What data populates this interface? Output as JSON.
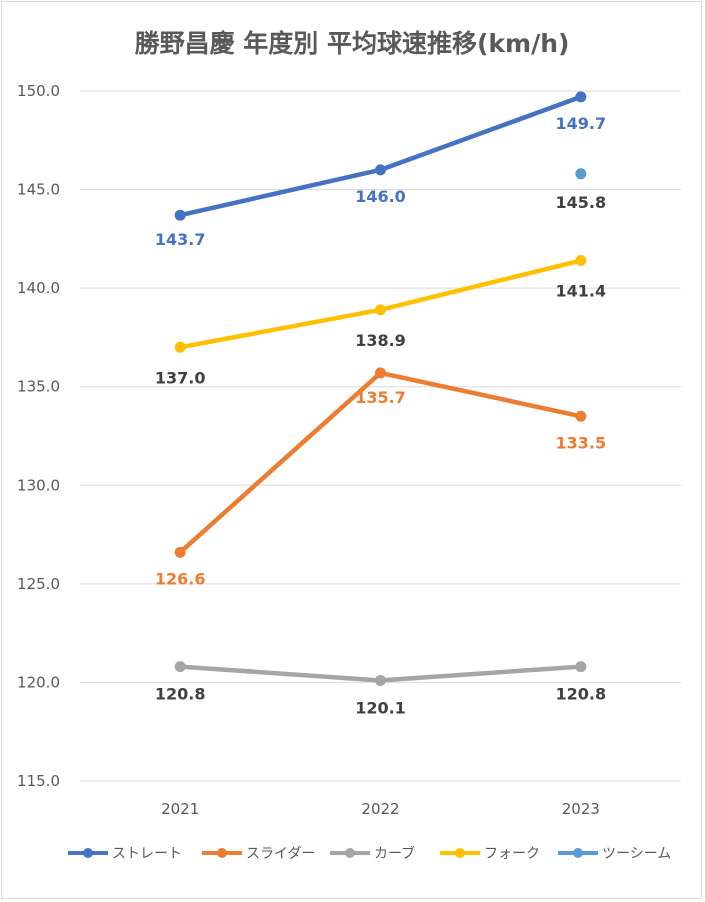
{
  "chart_data": {
    "type": "line",
    "title": "勝野昌慶 年度別 平均球速推移(km/h)",
    "xlabel": "",
    "ylabel": "",
    "categories": [
      "2021",
      "2022",
      "2023"
    ],
    "ylim": [
      115.0,
      150.0
    ],
    "yticks": [
      "115.0",
      "120.0",
      "125.0",
      "130.0",
      "135.0",
      "140.0",
      "145.0",
      "150.0"
    ],
    "grid": true,
    "legend": "bottom",
    "series": [
      {
        "name": "ストレート",
        "color": "#4472c4",
        "values": [
          143.7,
          146.0,
          149.7
        ],
        "labels": [
          "143.7",
          "146.0",
          "149.7"
        ],
        "label_color": "#4472c4"
      },
      {
        "name": "スライダー",
        "color": "#ed7d31",
        "values": [
          126.6,
          135.7,
          133.5
        ],
        "labels": [
          "126.6",
          "135.7",
          "133.5"
        ],
        "label_color": "#ed7d31"
      },
      {
        "name": "カーブ",
        "color": "#a5a5a5",
        "values": [
          120.8,
          120.1,
          120.8
        ],
        "labels": [
          "120.8",
          "120.1",
          "120.8"
        ],
        "label_color": "#404040"
      },
      {
        "name": "フォーク",
        "color": "#ffc000",
        "values": [
          137.0,
          138.9,
          141.4
        ],
        "labels": [
          "137.0",
          "138.9",
          "141.4"
        ],
        "label_color": "#404040"
      },
      {
        "name": "ツーシーム",
        "color": "#5b9bd5",
        "values": [
          null,
          null,
          145.8
        ],
        "labels": [
          null,
          null,
          "145.8"
        ],
        "label_color": "#404040"
      }
    ]
  }
}
